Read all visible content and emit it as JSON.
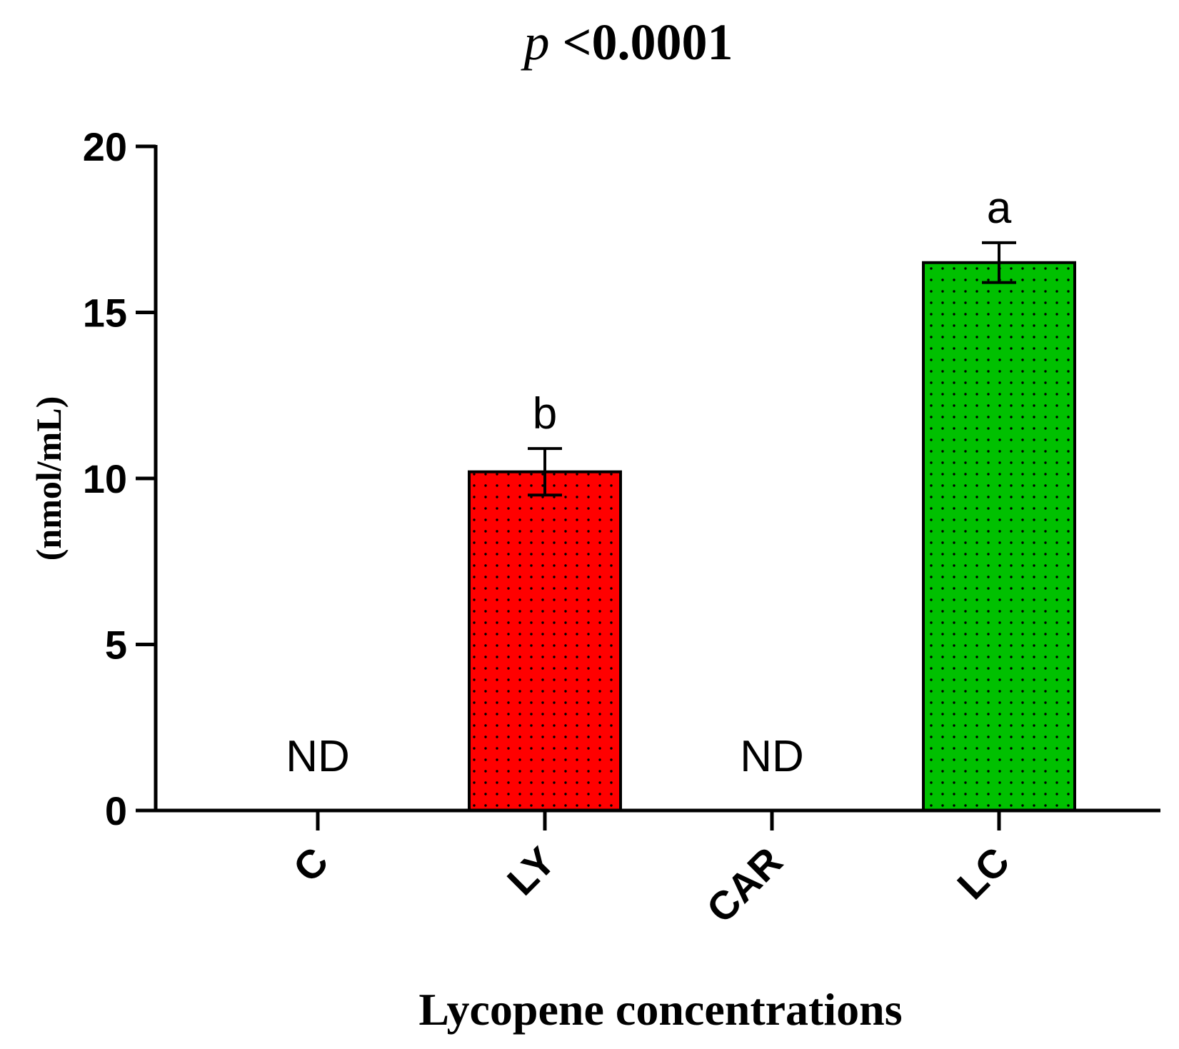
{
  "chart_data": {
    "type": "bar",
    "title": {
      "italic_part": "p",
      "rest": " <0.0001"
    },
    "xlabel": "Lycopene concentrations",
    "ylabel": "(nmol/mL)",
    "categories": [
      "C",
      "LY",
      "CAR",
      "LC"
    ],
    "values": [
      0,
      10.2,
      0,
      16.5
    ],
    "error": [
      0,
      0.7,
      0,
      0.6
    ],
    "bar_labels": [
      "ND",
      "b",
      "ND",
      "a"
    ],
    "colors": [
      "#ffffff",
      "#ff0000",
      "#ffffff",
      "#00c000"
    ],
    "fill_pattern": "dots",
    "ylim": [
      0,
      20
    ],
    "yticks": [
      0,
      5,
      10,
      15,
      20
    ],
    "ytick_labels": [
      "0",
      "5",
      "10",
      "15",
      "20"
    ],
    "grid": false,
    "legend": "none"
  }
}
